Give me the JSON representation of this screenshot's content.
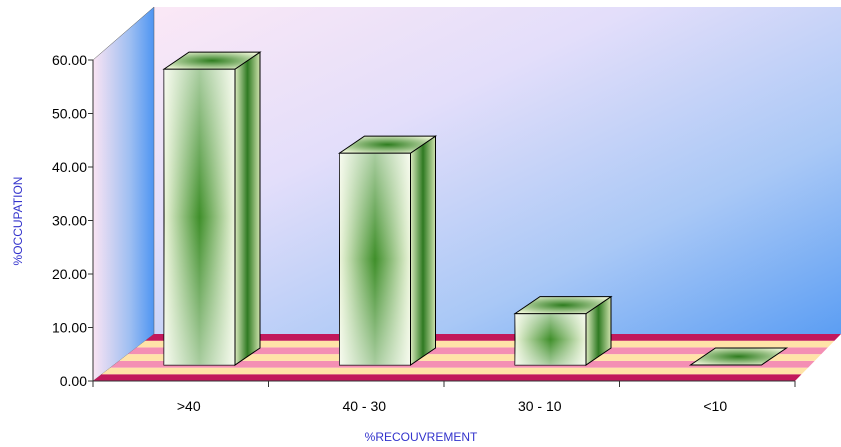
{
  "chart_data": {
    "type": "bar",
    "title": "",
    "xlabel": "%RECOUVREMENT",
    "ylabel": "%OCCUPATION",
    "categories": [
      ">40",
      "40 - 30",
      "30 - 10",
      "<10"
    ],
    "values": [
      55.3,
      39.6,
      9.6,
      0
    ],
    "ylim": [
      0,
      60
    ],
    "yticks": [
      "0.00",
      "10.00",
      "20.00",
      "30.00",
      "40.00",
      "50.00",
      "60.00"
    ],
    "grid": false,
    "legend": "none",
    "colors": {
      "bar_light": "#e6f0cc",
      "bar_dark": "#2e7d1f",
      "wall_light": "#f7dcf0",
      "wall_blue": "#5a9cf4",
      "floor_stripes": [
        "#ffe3a8",
        "#f48fb4",
        "#c2185b"
      ]
    }
  }
}
